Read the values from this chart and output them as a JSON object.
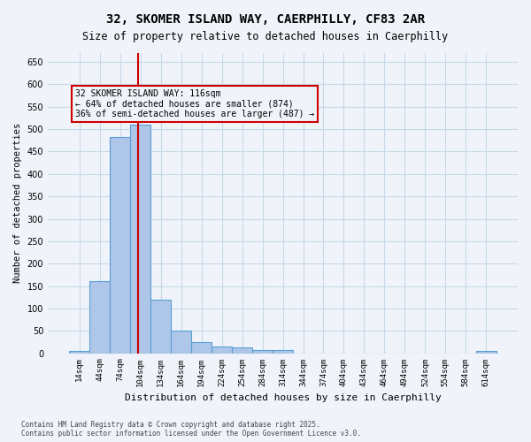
{
  "title_line1": "32, SKOMER ISLAND WAY, CAERPHILLY, CF83 2AR",
  "title_line2": "Size of property relative to detached houses in Caerphilly",
  "xlabel": "Distribution of detached houses by size in Caerphilly",
  "ylabel": "Number of detached properties",
  "annotation_title": "32 SKOMER ISLAND WAY: 116sqm",
  "annotation_line2": "← 64% of detached houses are smaller (874)",
  "annotation_line3": "36% of semi-detached houses are larger (487) →",
  "footer_line1": "Contains HM Land Registry data © Crown copyright and database right 2025.",
  "footer_line2": "Contains public sector information licensed under the Open Government Licence v3.0.",
  "bar_color": "#aec6e8",
  "bar_edge_color": "#5a9fd4",
  "grid_color": "#c8d8e8",
  "background_color": "#f0f4fa",
  "vline_x": 116,
  "vline_color": "#cc0000",
  "annotation_box_color": "#cc0000",
  "bin_width": 30,
  "bin_starts": [
    14,
    44,
    74,
    104,
    134,
    164,
    194,
    224,
    254,
    284,
    314,
    344,
    374,
    404,
    434,
    464,
    494,
    524,
    554,
    584,
    614
  ],
  "bar_values": [
    5,
    160,
    483,
    510,
    120,
    50,
    25,
    15,
    12,
    8,
    8,
    0,
    0,
    0,
    0,
    0,
    0,
    0,
    0,
    0,
    5
  ],
  "ylim": [
    0,
    670
  ],
  "yticks": [
    0,
    50,
    100,
    150,
    200,
    250,
    300,
    350,
    400,
    450,
    500,
    550,
    600,
    650
  ]
}
